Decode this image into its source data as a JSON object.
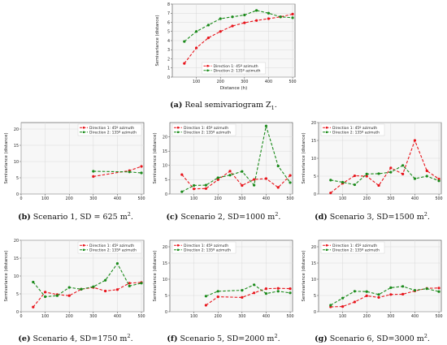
{
  "chart_data": [
    {
      "type": "line",
      "caption_label": "(a)",
      "caption_text": "Real semivariogram Z",
      "caption_sub": "1",
      "caption_tail": ".",
      "xlabel": "Distance (h)",
      "ylabel": "Semivariance (distance)",
      "xlim": [
        0,
        510
      ],
      "ylim": [
        0,
        8
      ],
      "xticks": [
        "100",
        "200",
        "300",
        "400",
        "500"
      ],
      "yticks": [
        "0",
        "1",
        "2",
        "3",
        "4",
        "5",
        "6",
        "7",
        "8"
      ],
      "grid": true,
      "legend_position": "lower-center",
      "series": [
        {
          "name": "Direction 1: 45º azimuth",
          "color": "#e8141b",
          "x": [
            50,
            100,
            150,
            200,
            250,
            300,
            350,
            400,
            450,
            500
          ],
          "y": [
            1.5,
            3.2,
            4.3,
            5.0,
            5.6,
            5.95,
            6.2,
            6.4,
            6.6,
            6.9
          ]
        },
        {
          "name": "Direction 2: 135º azimuth",
          "color": "#1a8a1a",
          "x": [
            50,
            100,
            150,
            200,
            250,
            300,
            350,
            400,
            450,
            500
          ],
          "y": [
            3.9,
            5.0,
            5.7,
            6.4,
            6.6,
            6.8,
            7.3,
            7.0,
            6.6,
            6.5
          ]
        }
      ]
    },
    {
      "type": "line",
      "caption_label": "(b)",
      "caption_text": "Scenario 1, SD = 625 m",
      "caption_sup": "2",
      "caption_tail": ".",
      "ylabel": "Semivariance (distance)",
      "xlim": [
        0,
        510
      ],
      "ylim": [
        0,
        22
      ],
      "xticks": [
        "0",
        "100",
        "200",
        "300",
        "400",
        "500"
      ],
      "yticks": [
        "0",
        "5",
        "10",
        "15",
        "20"
      ],
      "grid": true,
      "legend_position": "top-right",
      "series": [
        {
          "name": "Direction 1: 45º azimuth",
          "color": "#e8141b",
          "x": [
            300,
            450,
            500
          ],
          "y": [
            5.4,
            7.2,
            8.5
          ]
        },
        {
          "name": "Direction 2: 135º azimuth",
          "color": "#1a8a1a",
          "x": [
            300,
            450,
            500
          ],
          "y": [
            7.0,
            6.8,
            6.5
          ]
        }
      ]
    },
    {
      "type": "line",
      "caption_label": "(c)",
      "caption_text": "Scenario 2, SD=1000 m",
      "caption_sup": "2",
      "caption_tail": ".",
      "ylabel": "Semivariance (distance)",
      "xlim": [
        0,
        510
      ],
      "ylim": [
        0,
        25
      ],
      "xticks": [
        "100",
        "200",
        "300",
        "400",
        "500"
      ],
      "yticks": [
        "0",
        "5",
        "10",
        "15",
        "20"
      ],
      "grid": true,
      "legend_position": "top-left",
      "series": [
        {
          "name": "Direction 1: 45º azimuth",
          "color": "#e8141b",
          "x": [
            50,
            100,
            150,
            200,
            250,
            300,
            350,
            400,
            450,
            500
          ],
          "y": [
            6.8,
            1.8,
            1.9,
            5.0,
            8.0,
            3.0,
            5.1,
            5.4,
            2.3,
            6.5
          ]
        },
        {
          "name": "Direction 2: 135º azimuth",
          "color": "#1a8a1a",
          "x": [
            50,
            100,
            150,
            200,
            250,
            300,
            350,
            400,
            450,
            500
          ],
          "y": [
            0.8,
            3.0,
            3.1,
            5.7,
            6.6,
            7.9,
            3.1,
            23.8,
            9.8,
            4.0
          ]
        }
      ]
    },
    {
      "type": "line",
      "caption_label": "(d)",
      "caption_text": "Scenario 3, SD=1500 m",
      "caption_sup": "2",
      "caption_tail": ".",
      "ylabel": "Semivariance (distance)",
      "xlim": [
        0,
        510
      ],
      "ylim": [
        0,
        20
      ],
      "xticks": [
        "100",
        "200",
        "300",
        "400",
        "500"
      ],
      "yticks": [
        "0",
        "5",
        "10",
        "15",
        "20"
      ],
      "grid": true,
      "legend_position": "top-left",
      "series": [
        {
          "name": "Direction 1: 45º azimuth",
          "color": "#e8141b",
          "x": [
            50,
            100,
            150,
            200,
            250,
            300,
            350,
            400,
            450,
            500
          ],
          "y": [
            0.3,
            3.0,
            5.1,
            5.0,
            2.4,
            7.3,
            5.6,
            15.0,
            6.5,
            4.2
          ]
        },
        {
          "name": "Direction 2: 135º azimuth",
          "color": "#1a8a1a",
          "x": [
            50,
            100,
            150,
            200,
            250,
            300,
            350,
            400,
            450,
            500
          ],
          "y": [
            3.9,
            3.3,
            2.6,
            5.6,
            5.7,
            6.1,
            8.0,
            4.3,
            5.0,
            3.7
          ]
        }
      ]
    },
    {
      "type": "line",
      "caption_label": "(e)",
      "caption_text": "Scenario 4, SD=1750 m",
      "caption_sup": "2",
      "caption_tail": ".",
      "ylabel": "Semivariance (distance)",
      "xlim": [
        0,
        510
      ],
      "ylim": [
        0,
        20
      ],
      "xticks": [
        "0",
        "100",
        "200",
        "300",
        "400",
        "500"
      ],
      "yticks": [
        "0",
        "5",
        "10",
        "15",
        "20"
      ],
      "grid": true,
      "legend_position": "top-right",
      "series": [
        {
          "name": "Direction 1: 45º azimuth",
          "color": "#e8141b",
          "x": [
            50,
            100,
            150,
            200,
            250,
            300,
            350,
            400,
            450,
            500
          ],
          "y": [
            1.3,
            5.5,
            4.8,
            4.5,
            6.3,
            6.8,
            5.8,
            6.2,
            8.0,
            8.2
          ]
        },
        {
          "name": "Direction 2: 135º azimuth",
          "color": "#1a8a1a",
          "x": [
            50,
            100,
            150,
            200,
            250,
            300,
            350,
            400,
            450,
            500
          ],
          "y": [
            8.3,
            4.2,
            4.5,
            6.8,
            6.3,
            7.0,
            8.8,
            13.5,
            7.2,
            8.0
          ]
        }
      ]
    },
    {
      "type": "line",
      "caption_label": "(f)",
      "caption_text": "Scenario 5, SD=2000 m",
      "caption_sup": "2",
      "caption_tail": ".",
      "ylabel": "Semivariance (distance)",
      "xlim": [
        0,
        510
      ],
      "ylim": [
        0,
        22
      ],
      "xticks": [
        "100",
        "200",
        "300",
        "400",
        "500"
      ],
      "yticks": [
        "0",
        "5",
        "10",
        "15",
        "20"
      ],
      "grid": true,
      "legend_position": "top-left",
      "series": [
        {
          "name": "Direction 1: 45º azimuth",
          "color": "#e8141b",
          "x": [
            150,
            200,
            300,
            350,
            400,
            450,
            500
          ],
          "y": [
            2.0,
            4.6,
            4.4,
            5.8,
            7.1,
            7.2,
            7.1
          ]
        },
        {
          "name": "Direction 2: 135º azimuth",
          "color": "#1a8a1a",
          "x": [
            150,
            200,
            300,
            350,
            400,
            450,
            500
          ],
          "y": [
            4.8,
            6.3,
            6.6,
            8.3,
            5.6,
            6.3,
            5.8
          ]
        }
      ]
    },
    {
      "type": "line",
      "caption_label": "(g)",
      "caption_text": "Scenario 6, SD=3000 m",
      "caption_sup": "2",
      "caption_tail": ".",
      "ylabel": "Semivariance (distance)",
      "xlim": [
        0,
        510
      ],
      "ylim": [
        0,
        22
      ],
      "xticks": [
        "100",
        "200",
        "300",
        "400",
        "500"
      ],
      "yticks": [
        "0",
        "5",
        "10",
        "15",
        "20"
      ],
      "grid": true,
      "legend_position": "top-left",
      "series": [
        {
          "name": "Direction 1: 45º azimuth",
          "color": "#e8141b",
          "x": [
            50,
            100,
            150,
            200,
            250,
            300,
            350,
            400,
            450,
            500
          ],
          "y": [
            1.5,
            1.6,
            3.0,
            4.9,
            4.4,
            5.3,
            5.4,
            6.4,
            7.2,
            7.3
          ]
        },
        {
          "name": "Direction 2: 135º azimuth",
          "color": "#1a8a1a",
          "x": [
            50,
            100,
            150,
            200,
            250,
            300,
            350,
            400,
            450,
            500
          ],
          "y": [
            2.0,
            4.2,
            6.3,
            6.2,
            5.3,
            7.4,
            7.8,
            6.6,
            7.1,
            6.2
          ]
        }
      ]
    }
  ]
}
